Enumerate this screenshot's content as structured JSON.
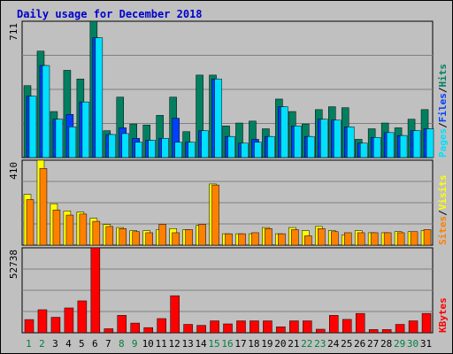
{
  "title": "Daily usage for December 2018",
  "colors": {
    "hits": "#008060",
    "files": "#0040ff",
    "pages": "#00e0ff",
    "visits": "#ffff00",
    "sites": "#ff8000",
    "kbytes": "#ff0000",
    "weekend_label": "#008040",
    "weekday_label": "#000000"
  },
  "chart_data": [
    {
      "type": "bar",
      "panel": "top",
      "ymax_label": "711",
      "right_labels": [
        "Pages",
        "/",
        "Files",
        "/",
        "Hits"
      ],
      "categories": [
        "1",
        "2",
        "3",
        "4",
        "5",
        "6",
        "7",
        "8",
        "9",
        "10",
        "11",
        "12",
        "13",
        "14",
        "15",
        "16",
        "17",
        "18",
        "19",
        "20",
        "21",
        "22",
        "23",
        "24",
        "25",
        "26",
        "27",
        "28",
        "29",
        "30",
        "31"
      ],
      "ylim": [
        0,
        711
      ],
      "series": [
        {
          "name": "Hits",
          "values": [
            375,
            555,
            240,
            455,
            410,
            711,
            140,
            315,
            175,
            170,
            220,
            315,
            135,
            430,
            430,
            165,
            180,
            190,
            150,
            305,
            240,
            175,
            250,
            265,
            260,
            95,
            150,
            180,
            155,
            200,
            250
          ]
        },
        {
          "name": "Files",
          "values": [
            320,
            480,
            200,
            225,
            290,
            625,
            120,
            155,
            100,
            90,
            100,
            205,
            80,
            140,
            410,
            110,
            75,
            95,
            110,
            265,
            165,
            110,
            200,
            195,
            160,
            75,
            105,
            130,
            115,
            140,
            150
          ]
        },
        {
          "name": "Pages",
          "values": [
            320,
            480,
            200,
            160,
            290,
            625,
            120,
            125,
            80,
            90,
            100,
            80,
            80,
            140,
            410,
            110,
            75,
            80,
            110,
            265,
            165,
            110,
            200,
            195,
            160,
            75,
            105,
            130,
            115,
            140,
            150
          ]
        }
      ]
    },
    {
      "type": "bar",
      "panel": "middle",
      "ymax_label": "410",
      "right_labels": [
        "Sites",
        "/",
        "Visits"
      ],
      "categories": [
        "1",
        "2",
        "3",
        "4",
        "5",
        "6",
        "7",
        "8",
        "9",
        "10",
        "11",
        "12",
        "13",
        "14",
        "15",
        "16",
        "17",
        "18",
        "19",
        "20",
        "21",
        "22",
        "23",
        "24",
        "25",
        "26",
        "27",
        "28",
        "29",
        "30",
        "31"
      ],
      "ylim": [
        0,
        410
      ],
      "series": [
        {
          "name": "Visits",
          "values": [
            245,
            410,
            200,
            165,
            160,
            130,
            100,
            85,
            70,
            70,
            75,
            80,
            75,
            95,
            295,
            55,
            55,
            55,
            85,
            55,
            85,
            70,
            90,
            70,
            50,
            70,
            60,
            60,
            65,
            65,
            70
          ]
        },
        {
          "name": "Sites",
          "values": [
            220,
            370,
            170,
            145,
            150,
            115,
            90,
            80,
            65,
            60,
            100,
            60,
            75,
            100,
            290,
            55,
            55,
            60,
            80,
            55,
            75,
            45,
            80,
            65,
            60,
            60,
            60,
            60,
            60,
            65,
            75
          ]
        }
      ]
    },
    {
      "type": "bar",
      "panel": "bottom",
      "ymax_label": "52738",
      "right_labels": [
        "KBytes"
      ],
      "categories": [
        "1",
        "2",
        "3",
        "4",
        "5",
        "6",
        "7",
        "8",
        "9",
        "10",
        "11",
        "12",
        "13",
        "14",
        "15",
        "16",
        "17",
        "18",
        "19",
        "20",
        "21",
        "22",
        "23",
        "24",
        "25",
        "26",
        "27",
        "28",
        "29",
        "30",
        "31"
      ],
      "ylim": [
        0,
        52738
      ],
      "series": [
        {
          "name": "KBytes",
          "values": [
            8200,
            14300,
            9600,
            15400,
            19800,
            52738,
            2500,
            10800,
            6000,
            3200,
            8800,
            23000,
            5200,
            4600,
            7400,
            5500,
            7400,
            7400,
            7400,
            3700,
            7400,
            7400,
            2200,
            10800,
            8300,
            12000,
            2000,
            2000,
            5200,
            7400,
            12000
          ]
        }
      ]
    }
  ],
  "weekend_days": [
    1,
    2,
    8,
    9,
    15,
    16,
    22,
    23,
    29,
    30
  ]
}
